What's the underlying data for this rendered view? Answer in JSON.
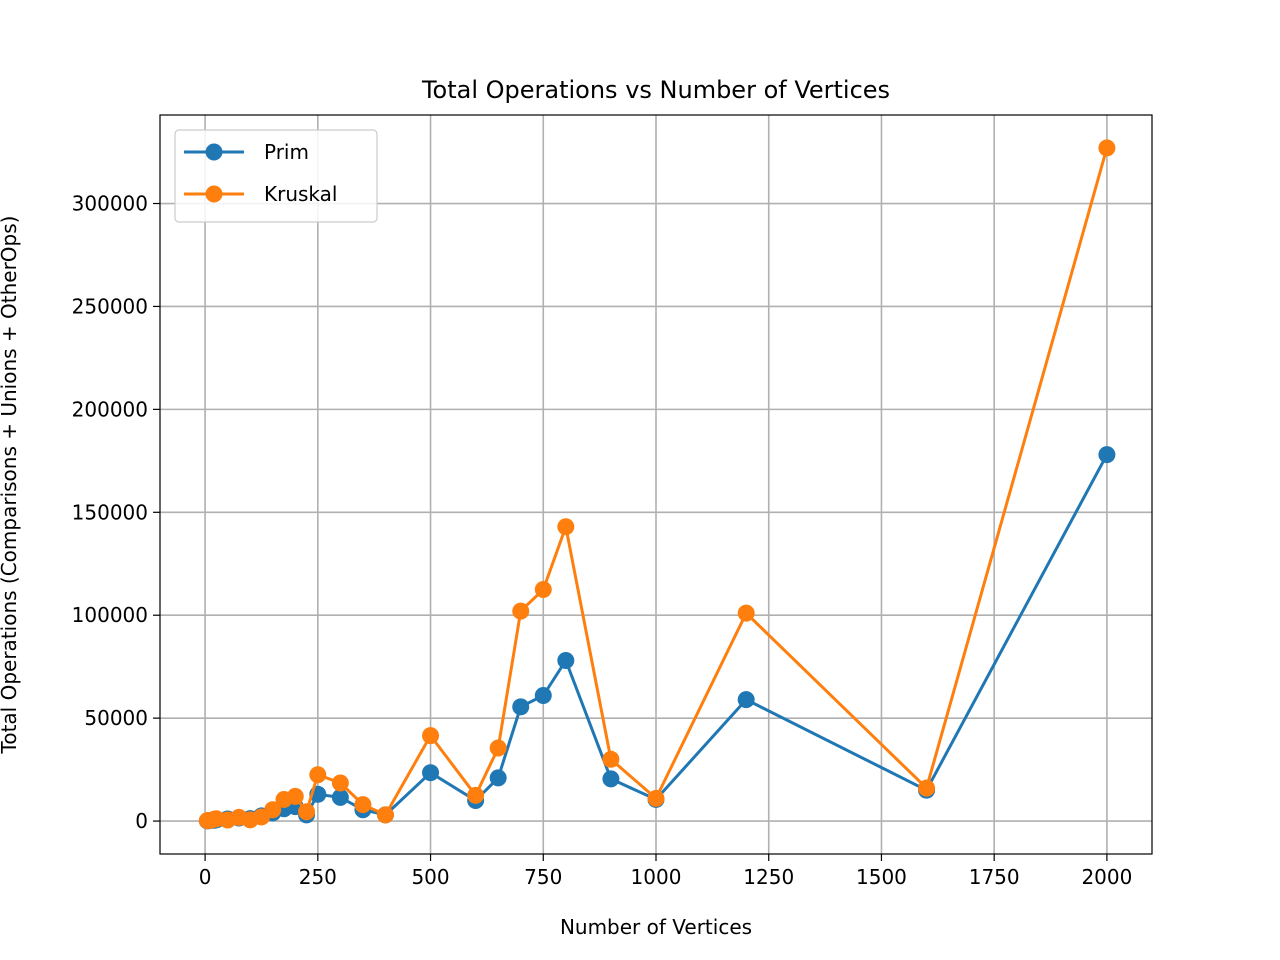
{
  "chart_data": {
    "type": "line",
    "title": "Total Operations vs Number of Vertices",
    "xlabel": "Number of Vertices",
    "ylabel": "Total Operations (Comparisons + Unions + OtherOps)",
    "xlim": [
      -100,
      2100
    ],
    "ylim": [
      -16000,
      343000
    ],
    "xticks": [
      0,
      250,
      500,
      750,
      1000,
      1250,
      1500,
      1750,
      2000
    ],
    "yticks": [
      0,
      50000,
      100000,
      150000,
      200000,
      250000,
      300000
    ],
    "grid": true,
    "legend_position": "top-left",
    "series": [
      {
        "name": "Prim",
        "color": "#1f77b4",
        "x": [
          5,
          10,
          20,
          25,
          50,
          75,
          100,
          125,
          150,
          175,
          200,
          225,
          250,
          300,
          350,
          400,
          500,
          600,
          650,
          700,
          750,
          800,
          900,
          1000,
          1200,
          1600,
          2000
        ],
        "y": [
          100,
          200,
          400,
          600,
          1000,
          1500,
          1200,
          2500,
          4000,
          6000,
          7000,
          3000,
          13000,
          11500,
          5500,
          3000,
          23500,
          10000,
          21000,
          55500,
          61000,
          78000,
          20500,
          10500,
          59000,
          15000,
          178000
        ]
      },
      {
        "name": "Kruskal",
        "color": "#ff7f0e",
        "x": [
          5,
          10,
          20,
          25,
          50,
          75,
          100,
          125,
          150,
          175,
          200,
          225,
          250,
          300,
          350,
          400,
          500,
          600,
          650,
          700,
          750,
          800,
          900,
          1000,
          1200,
          1600,
          2000
        ],
        "y": [
          200,
          300,
          900,
          1100,
          500,
          1800,
          600,
          2000,
          5500,
          10500,
          12000,
          4500,
          22500,
          18500,
          8000,
          3000,
          41500,
          12500,
          35500,
          102000,
          112500,
          143000,
          30000,
          11000,
          101000,
          16000,
          327000
        ]
      }
    ]
  }
}
